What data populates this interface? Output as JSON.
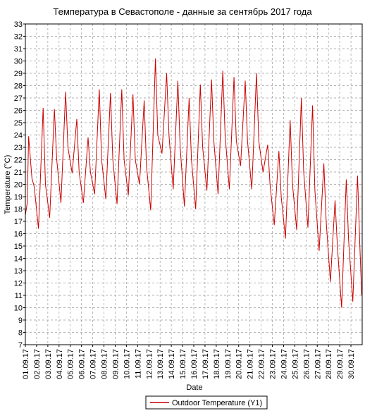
{
  "chart_data": {
    "type": "line",
    "title": "Температура в Севастополе - данные за сентябрь 2017 года",
    "xlabel": "Date",
    "ylabel": "Temperature (°C)",
    "ylim": [
      7,
      33
    ],
    "yticks": [
      7,
      8,
      9,
      10,
      11,
      12,
      13,
      14,
      15,
      16,
      17,
      18,
      19,
      20,
      21,
      22,
      23,
      24,
      25,
      26,
      27,
      28,
      29,
      30,
      31,
      32,
      33
    ],
    "xlim": [
      "01.09.17",
      "01.10.17"
    ],
    "xtick_labels": [
      "01.09.17",
      "02.09.17",
      "03.09.17",
      "04.09.17",
      "05.09.17",
      "06.09.17",
      "07.09.17",
      "08.09.17",
      "09.09.17",
      "10.09.17",
      "11.09.17",
      "12.09.17",
      "13.09.17",
      "14.09.17",
      "15.09.17",
      "16.09.17",
      "17.09.17",
      "18.09.17",
      "19.09.17",
      "20.09.17",
      "21.09.17",
      "22.09.17",
      "23.09.17",
      "24.09.17",
      "25.09.17",
      "26.09.17",
      "27.09.17",
      "28.09.17",
      "29.09.17",
      "30.09.17"
    ],
    "grid": true,
    "legend_position": "bottom-center",
    "series": [
      {
        "name": "Outdoor Temperature (Y1)",
        "color": "#cc0000",
        "points": [
          [
            "01.09.17 00:00",
            17.5
          ],
          [
            "01.09.17 04:00",
            18.5
          ],
          [
            "01.09.17 07:00",
            23.9
          ],
          [
            "01.09.17 14:00",
            20.5
          ],
          [
            "01.09.17 19:00",
            19.8
          ],
          [
            "02.09.17 04:00",
            16.4
          ],
          [
            "02.09.17 14:00",
            26.2
          ],
          [
            "02.09.17 19:00",
            20.0
          ],
          [
            "03.09.17 04:00",
            17.3
          ],
          [
            "03.09.17 14:00",
            26.1
          ],
          [
            "03.09.17 19:00",
            22.0
          ],
          [
            "04.09.17 04:00",
            18.5
          ],
          [
            "04.09.17 14:00",
            27.5
          ],
          [
            "04.09.17 19:00",
            23.0
          ],
          [
            "05.09.17 04:00",
            20.9
          ],
          [
            "05.09.17 14:00",
            25.3
          ],
          [
            "05.09.17 19:00",
            21.0
          ],
          [
            "06.09.17 04:00",
            18.5
          ],
          [
            "06.09.17 14:00",
            23.8
          ],
          [
            "06.09.17 19:00",
            21.0
          ],
          [
            "07.09.17 04:00",
            19.2
          ],
          [
            "07.09.17 14:00",
            27.7
          ],
          [
            "07.09.17 19:00",
            22.0
          ],
          [
            "08.09.17 04:00",
            18.8
          ],
          [
            "08.09.17 14:00",
            27.4
          ],
          [
            "08.09.17 19:00",
            22.0
          ],
          [
            "09.09.17 04:00",
            18.4
          ],
          [
            "09.09.17 14:00",
            27.7
          ],
          [
            "09.09.17 19:00",
            22.0
          ],
          [
            "10.09.17 04:00",
            19.1
          ],
          [
            "10.09.17 14:00",
            27.3
          ],
          [
            "10.09.17 19:00",
            22.0
          ],
          [
            "11.09.17 04:00",
            20.0
          ],
          [
            "11.09.17 14:00",
            26.8
          ],
          [
            "11.09.17 19:00",
            21.5
          ],
          [
            "12.09.17 04:00",
            17.9
          ],
          [
            "12.09.17 14:00",
            30.2
          ],
          [
            "12.09.17 19:00",
            24.0
          ],
          [
            "13.09.17 04:00",
            22.5
          ],
          [
            "13.09.17 14:00",
            29.0
          ],
          [
            "13.09.17 19:00",
            24.0
          ],
          [
            "14.09.17 04:00",
            19.6
          ],
          [
            "14.09.17 14:00",
            28.4
          ],
          [
            "14.09.17 19:00",
            23.0
          ],
          [
            "15.09.17 04:00",
            18.2
          ],
          [
            "15.09.17 14:00",
            27.0
          ],
          [
            "15.09.17 19:00",
            22.0
          ],
          [
            "16.09.17 04:00",
            18.0
          ],
          [
            "16.09.17 14:00",
            28.1
          ],
          [
            "16.09.17 19:00",
            23.0
          ],
          [
            "17.09.17 04:00",
            19.5
          ],
          [
            "17.09.17 14:00",
            28.5
          ],
          [
            "17.09.17 19:00",
            23.5
          ],
          [
            "18.09.17 04:00",
            19.2
          ],
          [
            "18.09.17 14:00",
            29.2
          ],
          [
            "18.09.17 19:00",
            24.0
          ],
          [
            "19.09.17 04:00",
            19.6
          ],
          [
            "19.09.17 14:00",
            28.7
          ],
          [
            "19.09.17 19:00",
            23.5
          ],
          [
            "20.09.17 04:00",
            21.5
          ],
          [
            "20.09.17 14:00",
            28.4
          ],
          [
            "20.09.17 19:00",
            23.5
          ],
          [
            "21.09.17 04:00",
            19.6
          ],
          [
            "21.09.17 14:00",
            29.0
          ],
          [
            "21.09.17 19:00",
            23.5
          ],
          [
            "22.09.17 04:00",
            21.0
          ],
          [
            "22.09.17 14:00",
            23.2
          ],
          [
            "22.09.17 19:00",
            20.0
          ],
          [
            "23.09.17 04:00",
            16.7
          ],
          [
            "23.09.17 14:00",
            22.7
          ],
          [
            "23.09.17 19:00",
            19.0
          ],
          [
            "24.09.17 04:00",
            15.6
          ],
          [
            "24.09.17 14:00",
            25.2
          ],
          [
            "24.09.17 19:00",
            20.0
          ],
          [
            "25.09.17 04:00",
            16.3
          ],
          [
            "25.09.17 14:00",
            27.0
          ],
          [
            "25.09.17 19:00",
            21.0
          ],
          [
            "26.09.17 04:00",
            16.5
          ],
          [
            "26.09.17 14:00",
            26.4
          ],
          [
            "26.09.17 19:00",
            19.5
          ],
          [
            "27.09.17 04:00",
            14.6
          ],
          [
            "27.09.17 14:00",
            21.7
          ],
          [
            "27.09.17 19:00",
            17.0
          ],
          [
            "28.09.17 04:00",
            12.1
          ],
          [
            "28.09.17 14:00",
            18.7
          ],
          [
            "28.09.17 19:00",
            15.0
          ],
          [
            "29.09.17 04:00",
            10.0
          ],
          [
            "29.09.17 14:00",
            20.4
          ],
          [
            "29.09.17 19:00",
            15.5
          ],
          [
            "30.09.17 04:00",
            10.5
          ],
          [
            "30.09.17 14:00",
            20.7
          ],
          [
            "30.09.17 19:00",
            15.0
          ],
          [
            "30.09.17 23:00",
            11.0
          ]
        ]
      }
    ]
  }
}
